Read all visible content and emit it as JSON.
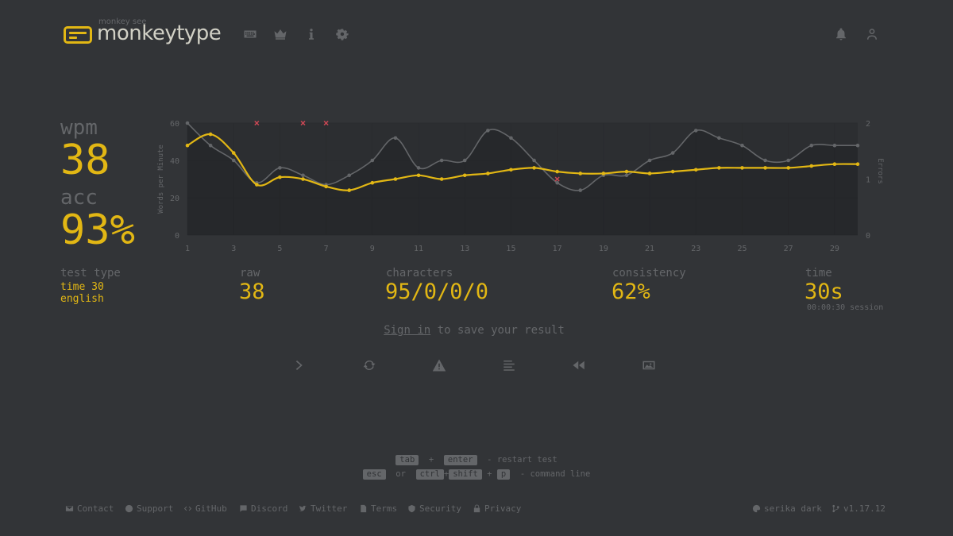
{
  "header": {
    "logo_top": "monkey see",
    "logo_text": "monkeytype",
    "nav_icons": [
      "keyboard-icon",
      "crown-icon",
      "info-icon",
      "settings-icon"
    ],
    "right_icons": [
      "bell-icon",
      "user-icon"
    ]
  },
  "stats": {
    "wpm_label": "wpm",
    "wpm_value": "38",
    "acc_label": "acc",
    "acc_value": "93%"
  },
  "details": {
    "test_type_label": "test type",
    "test_type_line1": "time 30",
    "test_type_line2": "english",
    "raw_label": "raw",
    "raw_value": "38",
    "characters_label": "characters",
    "characters_value": "95/0/0/0",
    "consistency_label": "consistency",
    "consistency_value": "62%",
    "time_label": "time",
    "time_value": "30s",
    "session": "00:00:30 session"
  },
  "signin": {
    "link": "Sign in",
    "rest": " to save your result"
  },
  "actions": [
    "next-test-icon",
    "restart-icon",
    "warning-icon",
    "words-history-icon",
    "replay-icon",
    "screenshot-icon"
  ],
  "shortcuts": {
    "k_tab": "tab",
    "plus": "+",
    "k_enter": "enter",
    "restart": "- restart test",
    "k_esc": "esc",
    "or": "or",
    "k_ctrl": "ctrl",
    "k_shift": "shift",
    "k_p": "p",
    "command": "- command line"
  },
  "footer": {
    "contact": "Contact",
    "support": "Support",
    "github": "GitHub",
    "discord": "Discord",
    "twitter": "Twitter",
    "terms": "Terms",
    "security": "Security",
    "privacy": "Privacy",
    "theme": "serika dark",
    "version": "v1.17.12"
  },
  "colors": {
    "background": "#323437",
    "main": "#e2b714",
    "sub": "#646669",
    "text": "#d1d0c5",
    "error": "#ca4754"
  },
  "chart_data": {
    "type": "line",
    "ylabel": "Words per Minute",
    "y2label": "Errors",
    "ylim": [
      0,
      60
    ],
    "y2lim": [
      0,
      2
    ],
    "yticks": [
      "0",
      "20",
      "40",
      "60"
    ],
    "y2ticks": [
      "0",
      "1",
      "2"
    ],
    "xticks": [
      "1",
      "3",
      "5",
      "7",
      "9",
      "11",
      "13",
      "15",
      "17",
      "19",
      "21",
      "23",
      "25",
      "27",
      "29"
    ],
    "x": [
      1,
      2,
      3,
      4,
      5,
      6,
      7,
      8,
      9,
      10,
      11,
      12,
      13,
      14,
      15,
      16,
      17,
      18,
      19,
      20,
      21,
      22,
      23,
      24,
      25,
      26,
      27,
      28,
      29,
      30
    ],
    "series": [
      {
        "name": "raw",
        "color": "#646669",
        "values": [
          60,
          48,
          40,
          28,
          36,
          32,
          27,
          32,
          40,
          52,
          36,
          40,
          40,
          56,
          52,
          40,
          28,
          24,
          32,
          32,
          40,
          44,
          56,
          52,
          48,
          40,
          40,
          48,
          48,
          48
        ]
      },
      {
        "name": "wpm",
        "color": "#e2b714",
        "values": [
          48,
          54,
          44,
          27,
          31,
          30,
          26,
          24,
          28,
          30,
          32,
          30,
          32,
          33,
          35,
          36,
          34,
          33,
          33,
          34,
          33,
          34,
          35,
          36,
          36,
          36,
          36,
          37,
          38,
          38
        ]
      }
    ],
    "errors": [
      {
        "x": 4,
        "y": 2
      },
      {
        "x": 6,
        "y": 2
      },
      {
        "x": 7,
        "y": 2
      },
      {
        "x": 17,
        "y": 1
      }
    ]
  }
}
